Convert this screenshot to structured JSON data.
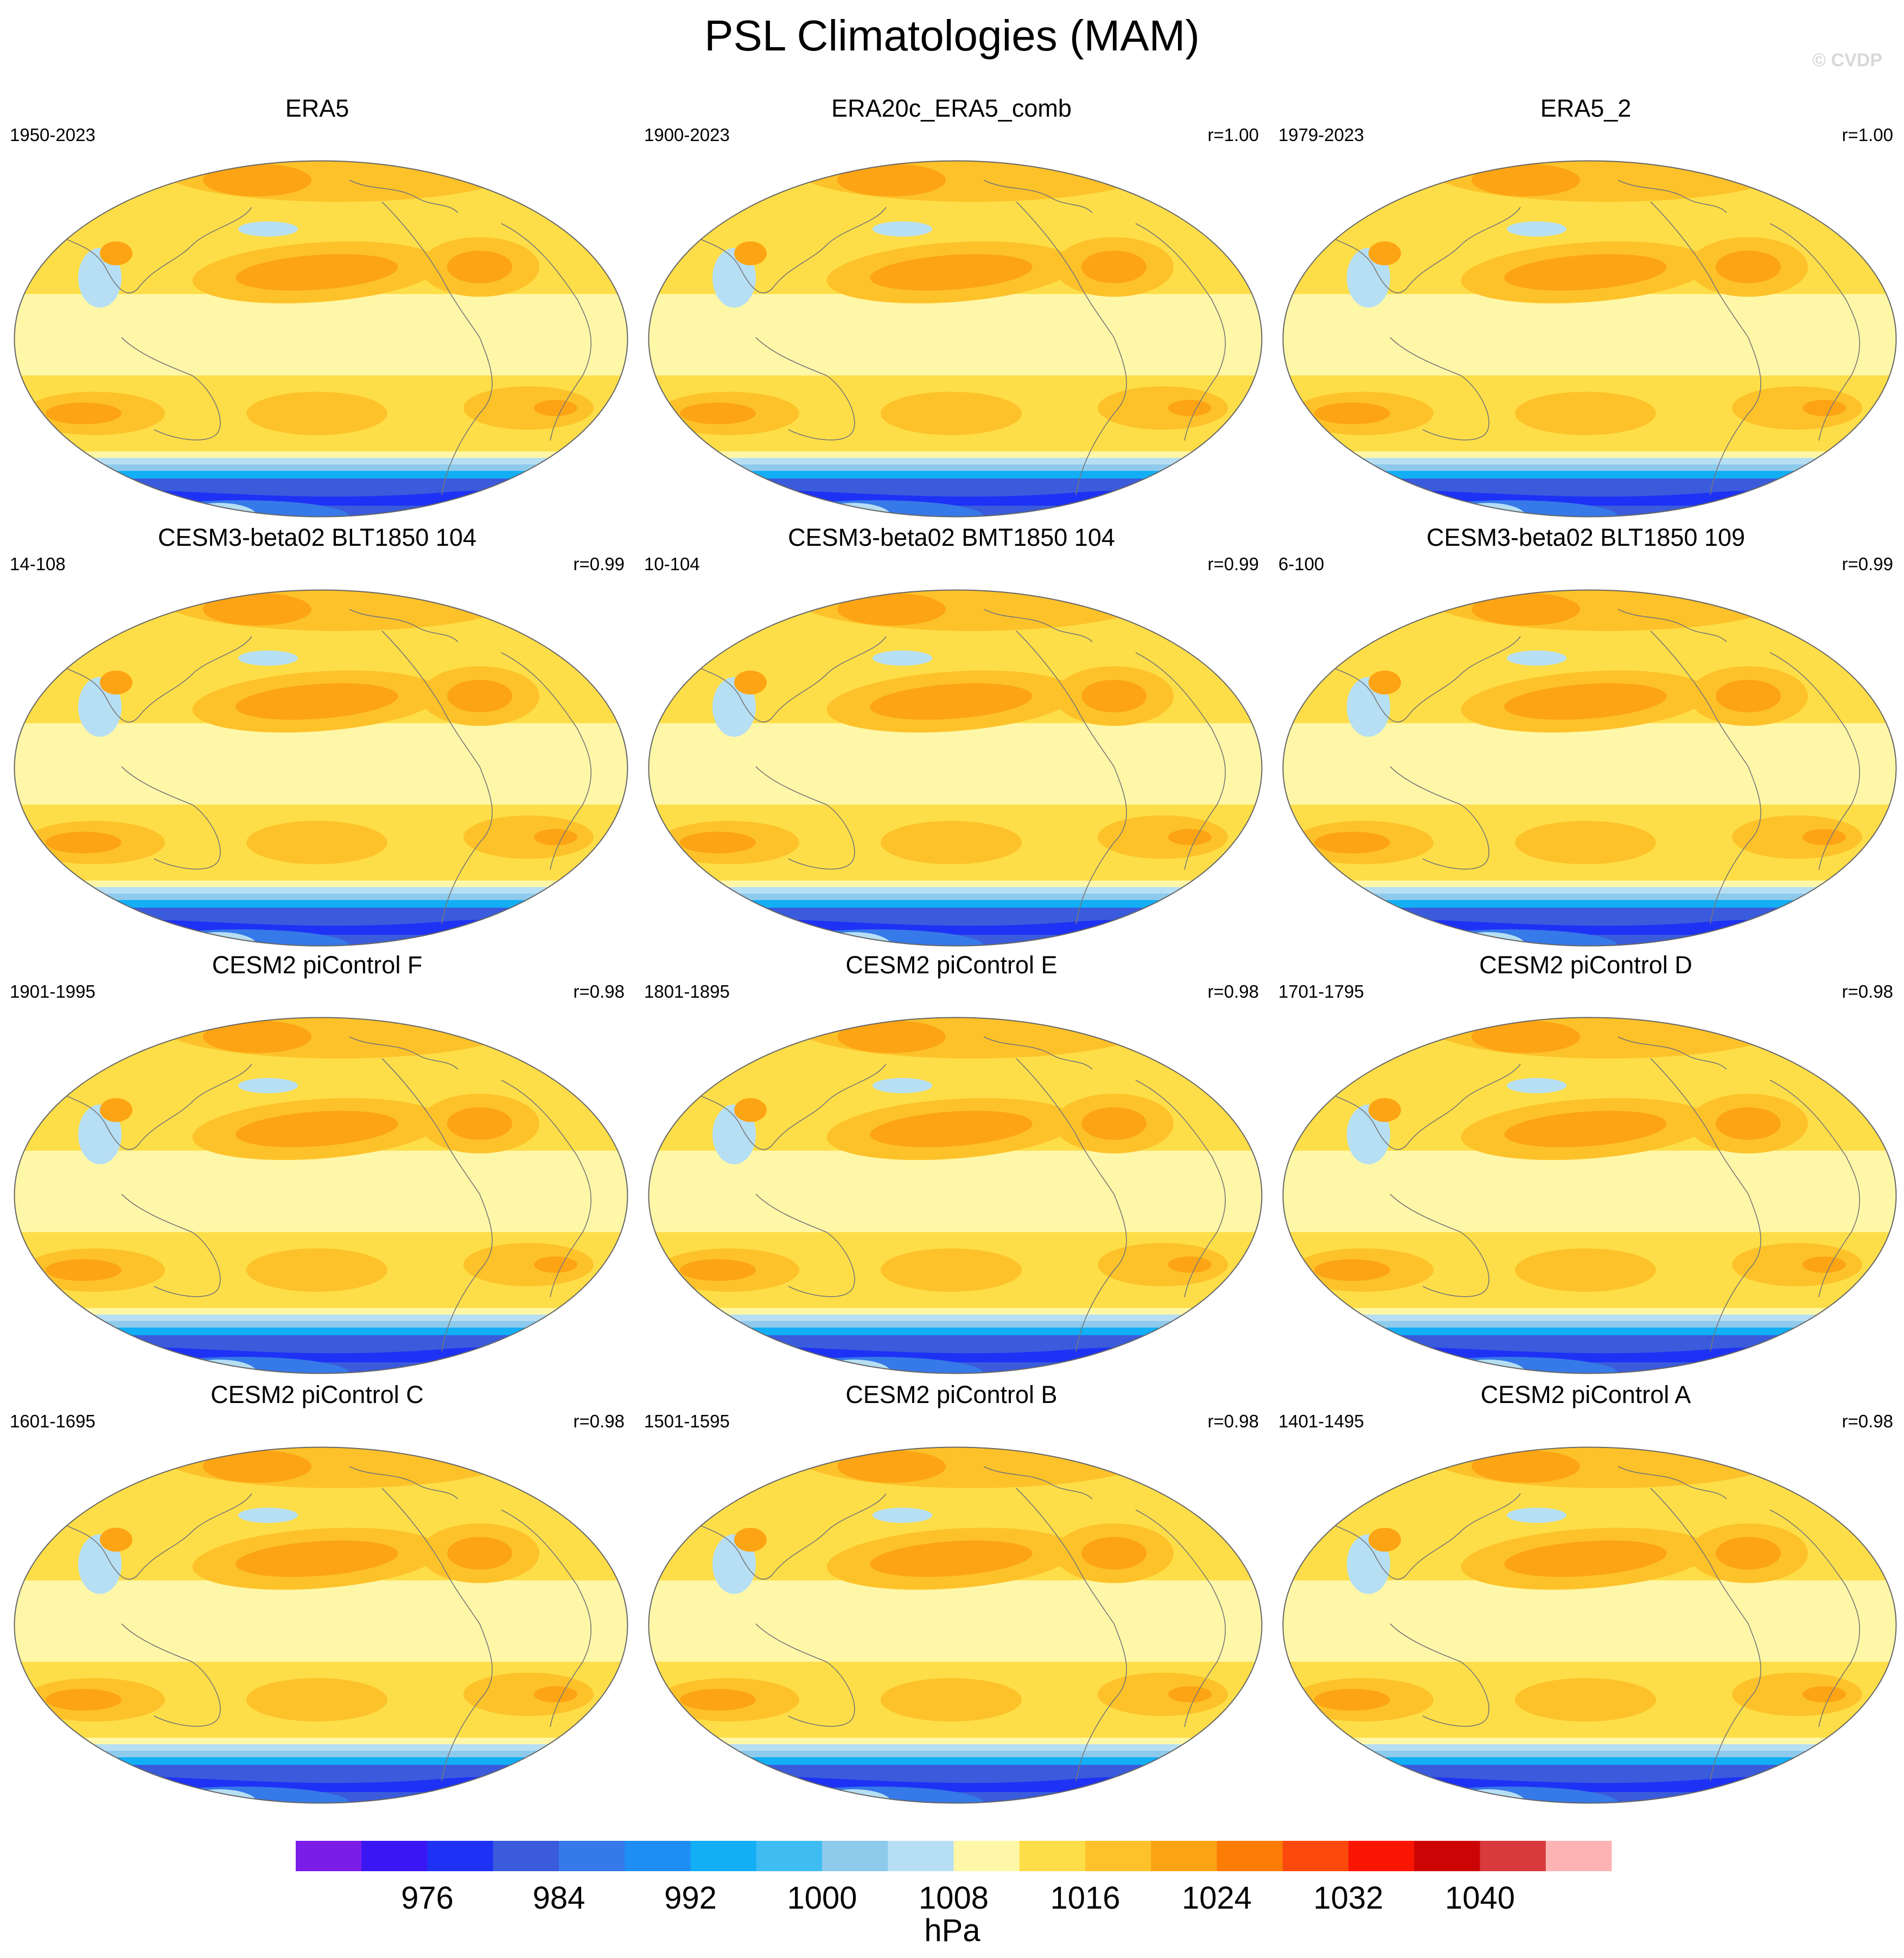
{
  "title": "PSL Climatologies (MAM)",
  "watermark": "© CVDP",
  "colors": {
    "levels": [
      "#7a1de8",
      "#3a17f2",
      "#1e32f5",
      "#3a5bdc",
      "#3679e8",
      "#1e8ef4",
      "#12aef6",
      "#3fbcf2",
      "#8ecaec",
      "#b6dff4",
      "#fff7a8",
      "#fede48",
      "#fdc22a",
      "#fda414",
      "#fd7c06",
      "#fb4a0c",
      "#fa1602",
      "#cc0404",
      "#d93a3c",
      "#fdb3b4"
    ]
  },
  "colorbar": {
    "ticks": [
      "976",
      "984",
      "992",
      "1000",
      "1008",
      "1016",
      "1024",
      "1032",
      "1040"
    ],
    "unit": "hPa"
  },
  "panels": [
    {
      "name": "ERA5",
      "years": "1950-2023",
      "r": ""
    },
    {
      "name": "ERA20c_ERA5_comb",
      "years": "1900-2023",
      "r": "r=1.00"
    },
    {
      "name": "ERA5_2",
      "years": "1979-2023",
      "r": "r=1.00"
    },
    {
      "name": "CESM3-beta02 BLT1850 104",
      "years": "14-108",
      "r": "r=0.99"
    },
    {
      "name": "CESM3-beta02 BMT1850 104",
      "years": "10-104",
      "r": "r=0.99"
    },
    {
      "name": "CESM3-beta02 BLT1850 109",
      "years": "6-100",
      "r": "r=0.99"
    },
    {
      "name": "CESM2 piControl F",
      "years": "1901-1995",
      "r": "r=0.98"
    },
    {
      "name": "CESM2 piControl E",
      "years": "1801-1895",
      "r": "r=0.98"
    },
    {
      "name": "CESM2 piControl D",
      "years": "1701-1795",
      "r": "r=0.98"
    },
    {
      "name": "CESM2 piControl C",
      "years": "1601-1695",
      "r": "r=0.98"
    },
    {
      "name": "CESM2 piControl B",
      "years": "1501-1595",
      "r": "r=0.98"
    },
    {
      "name": "CESM2 piControl A",
      "years": "1401-1495",
      "r": "r=0.98"
    }
  ]
}
